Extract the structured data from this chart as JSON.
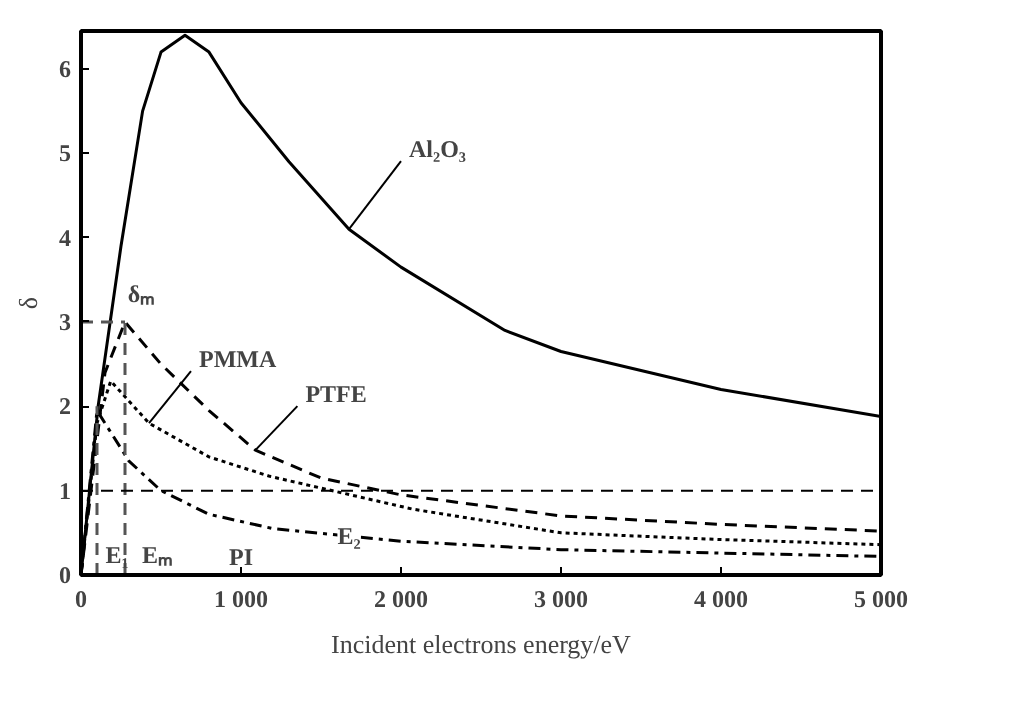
{
  "chart_data": {
    "type": "line",
    "xlabel": "Incident electrons energy/eV",
    "ylabel": "δ",
    "xlim": [
      0,
      5000
    ],
    "ylim": [
      0,
      6.45
    ],
    "xticks": [
      0,
      {
        "value": 1000,
        "label": "1 000"
      },
      {
        "value": 2000,
        "label": "2 000"
      },
      {
        "value": 3000,
        "label": "3 000"
      },
      {
        "value": 4000,
        "label": "4 000"
      },
      {
        "value": 5000,
        "label": "5 000"
      }
    ],
    "yticks": [
      0,
      1,
      2,
      3,
      4,
      5,
      6
    ],
    "grid": false,
    "series": [
      {
        "color": "#000000",
        "line_style": "solid",
        "x": [
          0,
          107,
          250,
          385,
          500,
          650,
          800,
          1000,
          1300,
          1675,
          2000,
          2650,
          3000,
          4000,
          5000
        ],
        "values": [
          0,
          2.0,
          3.9,
          5.5,
          6.2,
          6.4,
          6.2,
          5.6,
          4.9,
          4.1,
          3.65,
          2.9,
          2.65,
          2.2,
          1.88
        ]
      },
      {
        "color": "#000000",
        "line_style": "dashed",
        "x": [
          0,
          150,
          275,
          500,
          800,
          1090,
          1500,
          2000,
          3000,
          4000,
          5000
        ],
        "values": [
          0,
          2.4,
          3.0,
          2.5,
          1.95,
          1.48,
          1.15,
          0.95,
          0.7,
          0.6,
          0.52
        ]
      },
      {
        "color": "#000000",
        "line_style": "dotted",
        "x": [
          0,
          100,
          186,
          425,
          800,
          1180,
          2075,
          3000,
          4000,
          5000
        ],
        "values": [
          0,
          1.8,
          2.3,
          1.8,
          1.4,
          1.17,
          0.78,
          0.5,
          0.42,
          0.36
        ]
      },
      {
        "color": "#000000",
        "line_style": "dashdot",
        "x": [
          0,
          100,
          300,
          500,
          800,
          1200,
          2000,
          3000,
          4000,
          5000
        ],
        "values": [
          0,
          1.95,
          1.35,
          1.0,
          0.72,
          0.55,
          0.4,
          0.3,
          0.26,
          0.22
        ]
      },
      {
        "color": "#555555",
        "line_style": "dashed",
        "x": [
          100,
          100
        ],
        "values": [
          0,
          2.0
        ]
      },
      {
        "color": "#555555",
        "line_style": "dashed",
        "x": [
          275,
          275
        ],
        "values": [
          0,
          3.0
        ]
      },
      {
        "color": "#555555",
        "line_style": "dashed",
        "x": [
          0,
          275
        ],
        "values": [
          3.0,
          3.0
        ]
      }
    ],
    "ref_lines": [
      {
        "axis": "y",
        "value": 1,
        "color": "#000000",
        "line_style": "dashed"
      }
    ],
    "annotations": [
      {
        "text": "Al₂O₃",
        "x": 1675,
        "y": 4.1
      },
      {
        "text": "PMMA",
        "x": 425,
        "y": 1.8
      },
      {
        "text": "PTFE",
        "x": 1090,
        "y": 1.48
      },
      {
        "text": "PI",
        "x": 1000,
        "y": 0.635
      },
      {
        "text": "δₘ",
        "x": 275,
        "y": 3.0
      },
      {
        "text": "E₁",
        "x": 100,
        "y": 0
      },
      {
        "text": "Eₘ",
        "x": 275,
        "y": 0
      },
      {
        "text": "E₂",
        "x": 1675,
        "y": 0.46
      }
    ]
  }
}
